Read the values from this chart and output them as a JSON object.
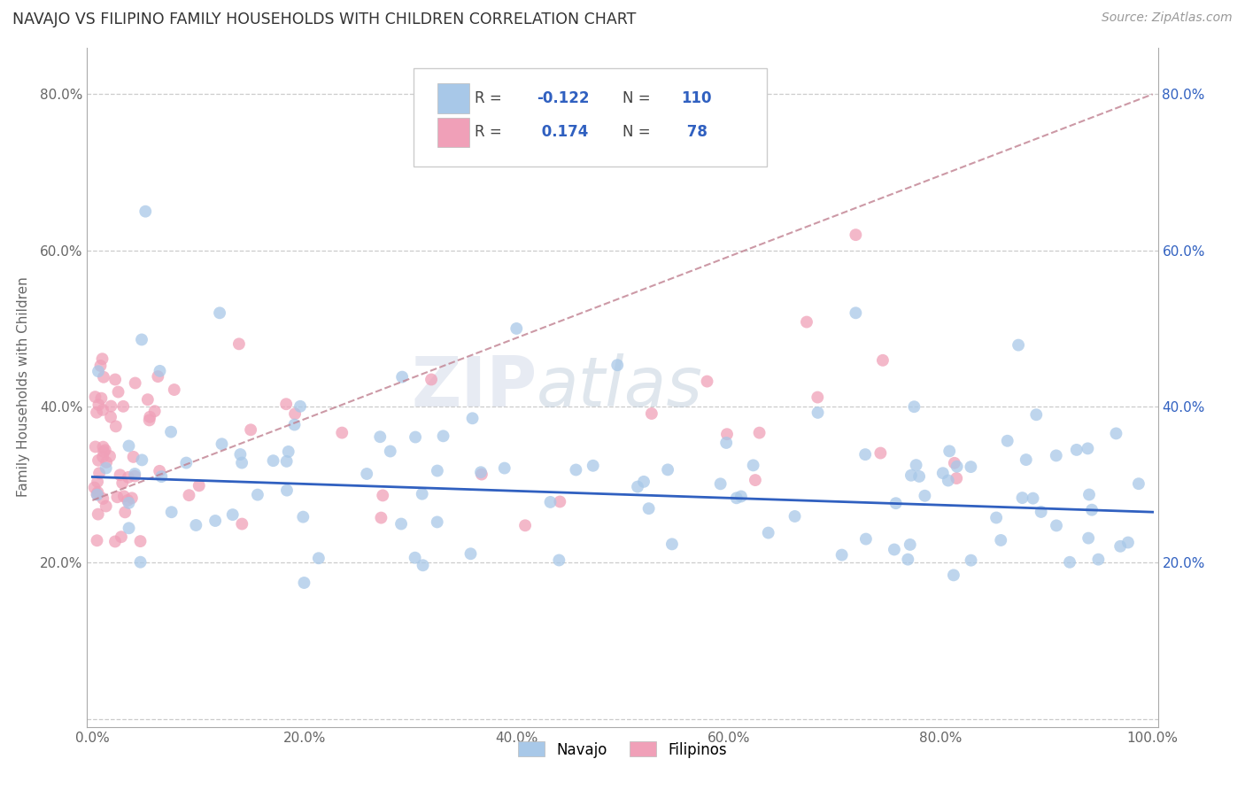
{
  "title": "NAVAJO VS FILIPINO FAMILY HOUSEHOLDS WITH CHILDREN CORRELATION CHART",
  "source": "Source: ZipAtlas.com",
  "ylabel": "Family Households with Children",
  "xlim": [
    0.0,
    1.0
  ],
  "ylim": [
    0.0,
    0.85
  ],
  "xtick_vals": [
    0.0,
    0.2,
    0.4,
    0.6,
    0.8,
    1.0
  ],
  "ytick_vals": [
    0.0,
    0.2,
    0.4,
    0.6,
    0.8
  ],
  "navajo_R": -0.122,
  "navajo_N": 110,
  "filipino_R": 0.174,
  "filipino_N": 78,
  "navajo_color": "#a8c8e8",
  "filipino_color": "#f0a0b8",
  "navajo_line_color": "#3060c0",
  "filipino_line_color": "#d06080",
  "legend_navajo_label": "Navajo",
  "legend_filipino_label": "Filipinos",
  "watermark_zip": "ZIP",
  "watermark_atlas": "atlas",
  "navajo_seed": 42,
  "filipino_seed": 99
}
